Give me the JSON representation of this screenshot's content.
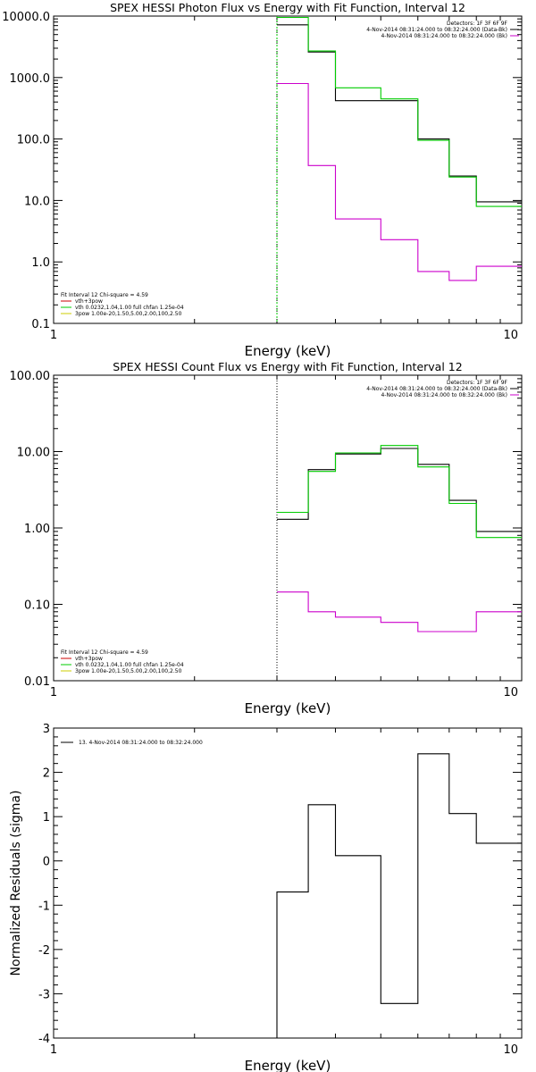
{
  "chart_data": [
    {
      "type": "line",
      "title": "SPEX HESSI Photon Flux vs Energy with Fit Function, Interval 12",
      "xlabel": "Energy (keV)",
      "ylabel": "",
      "xscale": "log",
      "yscale": "log",
      "xlim": [
        1,
        10
      ],
      "ylim": [
        0.1,
        10000
      ],
      "xticks": [
        "1",
        "10"
      ],
      "yticks": [
        "0.1",
        "1.0",
        "10.0",
        "100.0",
        "1000.0",
        "10000.0"
      ],
      "edges": [
        3,
        3.5,
        4,
        5,
        6,
        7,
        8,
        9,
        10
      ],
      "legend_top": [
        "Detectors: 1F 3F 6F 9F",
        "4-Nov-2014 08:31:24.000 to 08:32:24.000 (Data-Bk)",
        "4-Nov-2014 08:31:24.000 to 08:32:24.000 (Bk)"
      ],
      "legend_bottom": [
        "Fit Interval 12   Chi-square = 4.59",
        "vth+3pow",
        "vth 0.0232,1.04,1.00  full chfan 1.25e-04",
        "3pow 1.00e-20,1.50,5.00,2.00,100,2.50"
      ],
      "series": [
        {
          "color": "#000000",
          "values": [
            7200,
            2600,
            420,
            420,
            100,
            25,
            9.5,
            9.5
          ]
        },
        {
          "color": "#00cc00",
          "values": [
            9500,
            2700,
            680,
            450,
            95,
            24,
            8,
            8
          ]
        },
        {
          "color": "#cc00cc",
          "values": [
            800,
            37,
            5,
            2.3,
            0.7,
            0.5,
            0.85,
            0.85
          ]
        }
      ]
    },
    {
      "type": "line",
      "title": "SPEX HESSI Count Flux vs Energy with Fit Function, Interval 12",
      "xlabel": "Energy (keV)",
      "ylabel": "",
      "xscale": "log",
      "yscale": "log",
      "xlim": [
        1,
        10
      ],
      "ylim": [
        0.01,
        100
      ],
      "xticks": [
        "1",
        "10"
      ],
      "yticks": [
        "0.01",
        "0.10",
        "1.00",
        "10.00",
        "100.00"
      ],
      "edges": [
        3,
        3.5,
        4,
        5,
        6,
        7,
        8,
        9,
        10
      ],
      "legend_top": [
        "Detectors: 1F 3F 6F 9F",
        "4-Nov-2014 08:31:24.000 to 08:32:24.000 (Data-Bk)",
        "4-Nov-2014 08:31:24.000 to 08:32:24.000 (Bk)"
      ],
      "legend_bottom": [
        "Fit Interval 12   Chi-square = 4.59",
        "vth+3pow",
        "vth 0.0232,1.04,1.00  full chfan 1.25e-04",
        "3pow 1.00e-20,1.50,5.00,2.00,100,2.50"
      ],
      "series": [
        {
          "color": "#000000",
          "values": [
            1.3,
            5.8,
            9.3,
            11,
            6.8,
            2.3,
            0.9,
            0.9
          ]
        },
        {
          "color": "#00cc00",
          "values": [
            1.6,
            5.5,
            9.6,
            12,
            6.3,
            2.1,
            0.75,
            0.75
          ]
        },
        {
          "color": "#cc00cc",
          "values": [
            0.145,
            0.08,
            0.068,
            0.058,
            0.044,
            0.044,
            0.08,
            0.08
          ]
        }
      ]
    },
    {
      "type": "line",
      "title": "",
      "xlabel": "Energy (keV)",
      "ylabel": "Normalized Residuals (sigma)",
      "xscale": "log",
      "yscale": "linear",
      "xlim": [
        1,
        10
      ],
      "ylim": [
        -4,
        3
      ],
      "xticks": [
        "1",
        "10"
      ],
      "yticks": [
        "-4",
        "-3",
        "-2",
        "-1",
        "0",
        "1",
        "2",
        "3"
      ],
      "edges": [
        3,
        3.5,
        4,
        5,
        6,
        7,
        8,
        9,
        10
      ],
      "legend_top": [
        "13.  4-Nov-2014 08:31:24.000 to 08:32:24.000"
      ],
      "series": [
        {
          "color": "#000000",
          "values": [
            -0.7,
            1.27,
            0.12,
            -3.22,
            2.42,
            1.07,
            0.4,
            0.4
          ]
        }
      ]
    }
  ]
}
